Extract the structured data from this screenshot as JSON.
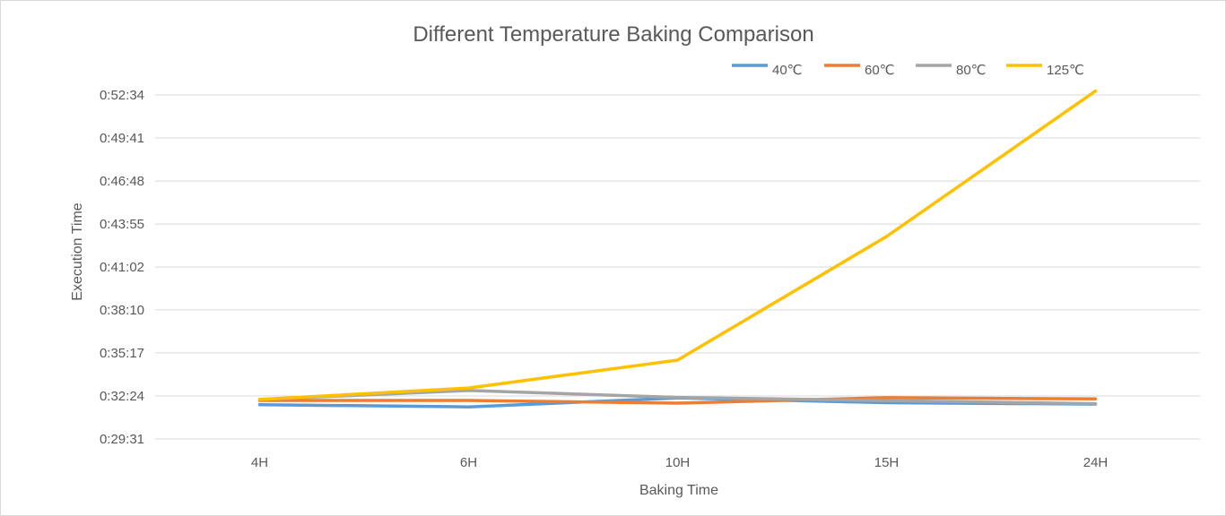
{
  "chart_data": {
    "type": "line",
    "title": "Different Temperature Baking Comparison",
    "xlabel": "Baking Time",
    "ylabel": "Execution Time",
    "categories": [
      "4H",
      "6H",
      "10H",
      "15H",
      "24H"
    ],
    "y_ticks": [
      "0:29:31",
      "0:32:24",
      "0:35:17",
      "0:38:10",
      "0:41:02",
      "0:43:55",
      "0:46:48",
      "0:49:41",
      "0:52:34"
    ],
    "y_tick_seconds": [
      1771,
      1944,
      2117,
      2290,
      2462,
      2635,
      2808,
      2981,
      3154
    ],
    "ylim_seconds": [
      1771,
      3154
    ],
    "grid": true,
    "legend_position": "top-right",
    "series": [
      {
        "name": "40℃",
        "color": "#5B9BD5",
        "values_hms": [
          "0:31:49",
          "0:31:40",
          "0:32:16",
          "0:31:57",
          "0:31:51"
        ],
        "values": [
          1909,
          1900,
          1936,
          1917,
          1911
        ]
      },
      {
        "name": "60℃",
        "color": "#ED7D31",
        "values_hms": [
          "0:32:06",
          "0:32:06",
          "0:31:55",
          "0:32:17",
          "0:32:12"
        ],
        "values": [
          1926,
          1926,
          1915,
          1937,
          1932
        ]
      },
      {
        "name": "80℃",
        "color": "#A5A5A5",
        "values_hms": [
          "0:32:10",
          "0:32:46",
          "0:32:18",
          "0:32:05",
          "0:31:53"
        ],
        "values": [
          1930,
          1966,
          1938,
          1925,
          1913
        ]
      },
      {
        "name": "125℃",
        "color": "#FFC000",
        "values_hms": [
          "0:32:10",
          "0:32:56",
          "0:34:48",
          "0:43:05",
          "0:52:50"
        ],
        "values": [
          1930,
          1976,
          2088,
          2585,
          3170
        ]
      }
    ]
  }
}
